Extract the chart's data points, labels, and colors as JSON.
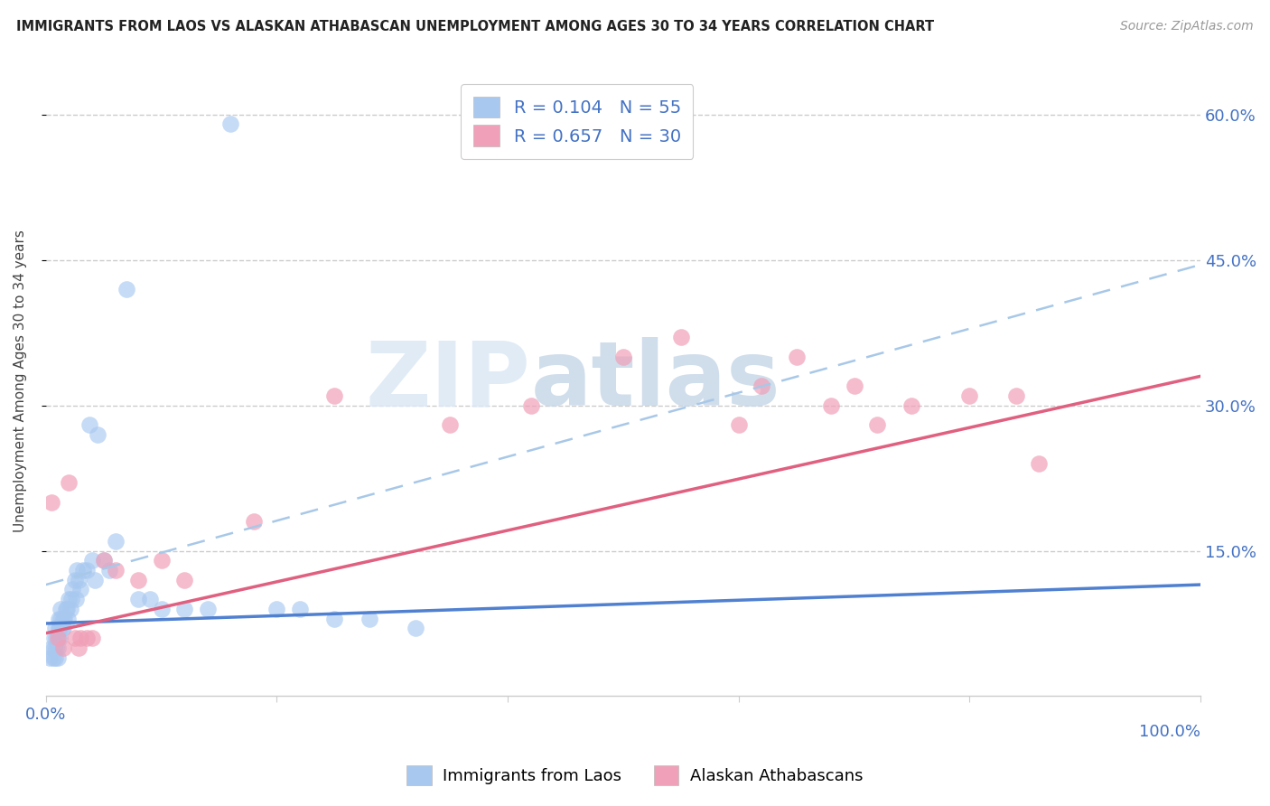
{
  "title": "IMMIGRANTS FROM LAOS VS ALASKAN ATHABASCAN UNEMPLOYMENT AMONG AGES 30 TO 34 YEARS CORRELATION CHART",
  "source": "Source: ZipAtlas.com",
  "ylabel": "Unemployment Among Ages 30 to 34 years",
  "xlim": [
    0,
    1.0
  ],
  "ylim": [
    0,
    0.65
  ],
  "color_blue": "#A8C8F0",
  "color_pink": "#F0A0B8",
  "color_blue_line": "#5080D0",
  "color_pink_line": "#E06080",
  "color_dashed": "#A8C8E8",
  "color_axis": "#4472C4",
  "watermark1": "ZIP",
  "watermark2": "atlas",
  "blue_R": "0.104",
  "blue_N": "55",
  "pink_R": "0.657",
  "pink_N": "30",
  "blue_label": "Immigrants from Laos",
  "pink_label": "Alaskan Athabascans",
  "blue_x": [
    0.003,
    0.005,
    0.006,
    0.007,
    0.007,
    0.008,
    0.008,
    0.009,
    0.009,
    0.01,
    0.01,
    0.01,
    0.011,
    0.011,
    0.012,
    0.012,
    0.013,
    0.013,
    0.014,
    0.015,
    0.015,
    0.016,
    0.017,
    0.018,
    0.019,
    0.02,
    0.021,
    0.022,
    0.023,
    0.025,
    0.026,
    0.027,
    0.028,
    0.03,
    0.032,
    0.035,
    0.038,
    0.04,
    0.042,
    0.045,
    0.05,
    0.055,
    0.06,
    0.07,
    0.08,
    0.09,
    0.1,
    0.12,
    0.14,
    0.16,
    0.2,
    0.22,
    0.25,
    0.28,
    0.32
  ],
  "blue_y": [
    0.04,
    0.05,
    0.04,
    0.05,
    0.06,
    0.04,
    0.07,
    0.05,
    0.06,
    0.04,
    0.05,
    0.06,
    0.07,
    0.08,
    0.06,
    0.07,
    0.08,
    0.09,
    0.07,
    0.07,
    0.08,
    0.08,
    0.09,
    0.09,
    0.08,
    0.1,
    0.09,
    0.1,
    0.11,
    0.12,
    0.1,
    0.13,
    0.12,
    0.11,
    0.13,
    0.13,
    0.28,
    0.14,
    0.12,
    0.27,
    0.14,
    0.13,
    0.16,
    0.42,
    0.1,
    0.1,
    0.09,
    0.09,
    0.09,
    0.59,
    0.09,
    0.09,
    0.08,
    0.08,
    0.07
  ],
  "pink_x": [
    0.005,
    0.01,
    0.015,
    0.02,
    0.025,
    0.028,
    0.03,
    0.035,
    0.04,
    0.05,
    0.06,
    0.08,
    0.1,
    0.12,
    0.18,
    0.25,
    0.35,
    0.42,
    0.5,
    0.55,
    0.6,
    0.62,
    0.65,
    0.68,
    0.7,
    0.72,
    0.75,
    0.8,
    0.84,
    0.86
  ],
  "pink_y": [
    0.2,
    0.06,
    0.05,
    0.22,
    0.06,
    0.05,
    0.06,
    0.06,
    0.06,
    0.14,
    0.13,
    0.12,
    0.14,
    0.12,
    0.18,
    0.31,
    0.28,
    0.3,
    0.35,
    0.37,
    0.28,
    0.32,
    0.35,
    0.3,
    0.32,
    0.28,
    0.3,
    0.31,
    0.31,
    0.24
  ],
  "ytick_positions": [
    0.15,
    0.3,
    0.45,
    0.6
  ],
  "ytick_labels": [
    "15.0%",
    "30.0%",
    "45.0%",
    "60.0%"
  ],
  "xtick_positions": [
    0.0,
    0.2,
    0.4,
    0.6,
    0.8,
    1.0
  ],
  "xtick_labels_left": [
    "0.0%",
    "",
    "",
    "",
    "",
    ""
  ],
  "xtick_labels_right": [
    "",
    "",
    "",
    "",
    "",
    "100.0%"
  ]
}
